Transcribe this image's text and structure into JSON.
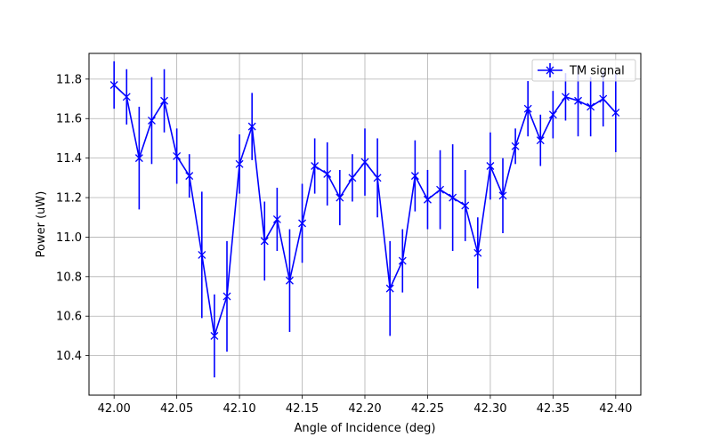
{
  "chart_data": {
    "type": "line",
    "title": "",
    "xlabel": "Angle of Incidence (deg)",
    "ylabel": "Power (uW)",
    "xlim": [
      41.98,
      42.42
    ],
    "ylim": [
      10.2,
      11.93
    ],
    "xticks": [
      "42.00",
      "42.05",
      "42.10",
      "42.15",
      "42.20",
      "42.25",
      "42.30",
      "42.35",
      "42.40"
    ],
    "yticks": [
      "10.4",
      "10.6",
      "10.8",
      "11.0",
      "11.2",
      "11.4",
      "11.6",
      "11.8"
    ],
    "grid": true,
    "legend_position": "top-right",
    "series": [
      {
        "name": "TM signal",
        "color": "#0000ff",
        "marker": "x",
        "x": [
          42.0,
          42.01,
          42.02,
          42.03,
          42.04,
          42.05,
          42.06,
          42.07,
          42.08,
          42.09,
          42.1,
          42.11,
          42.12,
          42.13,
          42.14,
          42.15,
          42.16,
          42.17,
          42.18,
          42.19,
          42.2,
          42.21,
          42.22,
          42.23,
          42.24,
          42.25,
          42.26,
          42.27,
          42.28,
          42.29,
          42.3,
          42.31,
          42.32,
          42.33,
          42.34,
          42.35,
          42.36,
          42.37,
          42.38,
          42.39,
          42.4
        ],
        "y": [
          11.77,
          11.71,
          11.4,
          11.59,
          11.69,
          11.41,
          11.31,
          10.91,
          10.5,
          10.7,
          11.37,
          11.56,
          10.98,
          11.09,
          10.78,
          11.07,
          11.36,
          11.32,
          11.2,
          11.3,
          11.38,
          11.3,
          10.74,
          10.88,
          11.31,
          11.19,
          11.24,
          11.2,
          11.16,
          10.92,
          11.36,
          11.21,
          11.46,
          11.65,
          11.49,
          11.62,
          11.71,
          11.69,
          11.66,
          11.7,
          11.63
        ],
        "yerr": [
          0.12,
          0.14,
          0.26,
          0.22,
          0.16,
          0.14,
          0.11,
          0.32,
          0.21,
          0.28,
          0.15,
          0.17,
          0.2,
          0.16,
          0.26,
          0.2,
          0.14,
          0.16,
          0.14,
          0.12,
          0.17,
          0.2,
          0.24,
          0.16,
          0.18,
          0.15,
          0.2,
          0.27,
          0.18,
          0.18,
          0.17,
          0.19,
          0.09,
          0.14,
          0.13,
          0.12,
          0.12,
          0.18,
          0.15,
          0.14,
          0.2
        ]
      }
    ]
  }
}
